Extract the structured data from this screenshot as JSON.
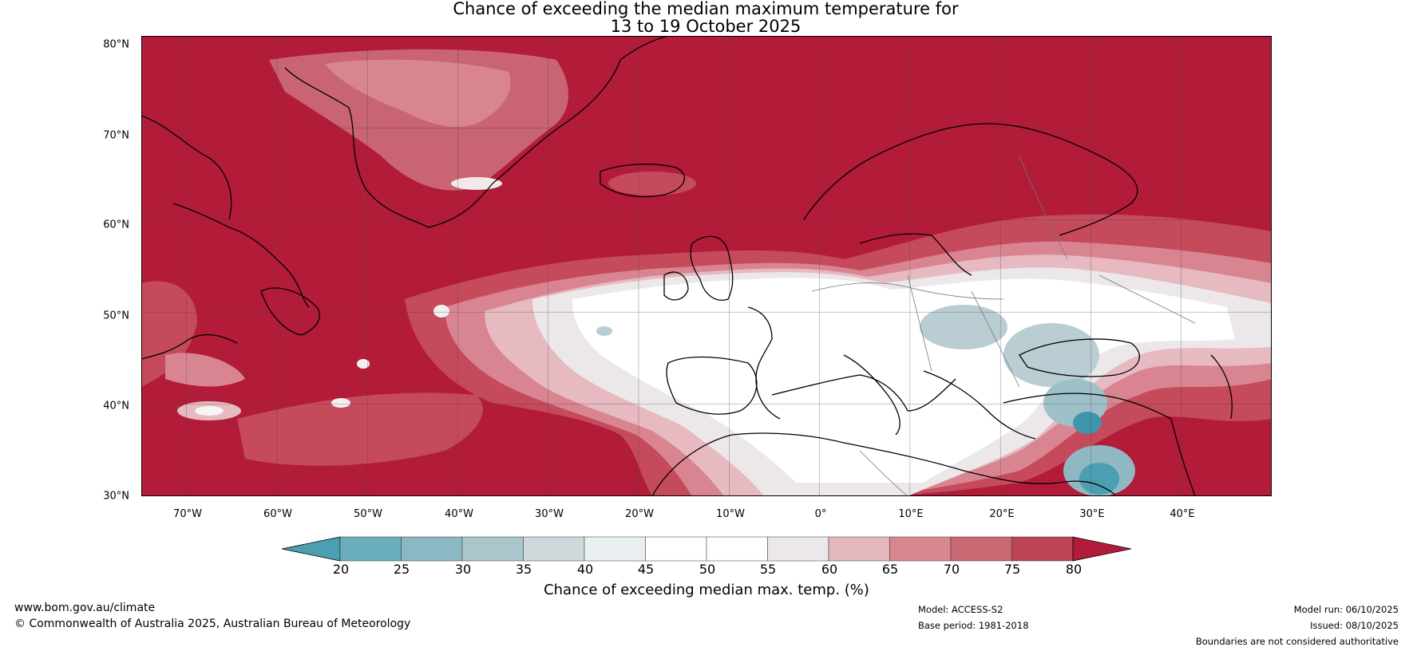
{
  "title": {
    "line1": "Chance of exceeding the median maximum temperature for",
    "line2": "13 to 19 October 2025"
  },
  "map": {
    "lat_range": [
      30,
      80
    ],
    "lon_range": [
      -75,
      50
    ],
    "y_ticks": [
      "80°N",
      "70°N",
      "60°N",
      "50°N",
      "40°N",
      "30°N"
    ],
    "x_ticks": [
      "70°W",
      "60°W",
      "50°W",
      "40°W",
      "30°W",
      "20°W",
      "10°W",
      "0°",
      "10°E",
      "20°E",
      "30°E",
      "40°E"
    ]
  },
  "colorbar": {
    "label": "Chance of exceeding median max. temp. (%)",
    "ticks": [
      "20",
      "25",
      "30",
      "35",
      "40",
      "45",
      "50",
      "55",
      "60",
      "65",
      "70",
      "75",
      "80"
    ],
    "colors": [
      "#4a9fb0",
      "#6aaebb",
      "#8ab8c4",
      "#aac6cc",
      "#cfd8db",
      "#eaf0f2",
      "#ffffff",
      "#ffffff",
      "#ece8e9",
      "#e4b7bd",
      "#d88690",
      "#c86873",
      "#bd4553",
      "#b21c38"
    ]
  },
  "footer": {
    "website": "www.bom.gov.au/climate",
    "copyright": "© Commonwealth of Australia 2025, Australian Bureau of Meteorology",
    "model": "Model: ACCESS-S2",
    "base_period": "Base period: 1981-2018",
    "model_run": "Model run: 06/10/2025",
    "issued": "Issued: 08/10/2025",
    "boundaries": "Boundaries are not considered authoritative"
  },
  "colors": {
    "dark_red": "#b21c38",
    "red": "#c54a5c",
    "pink": "#d98591",
    "light_pink": "#e7b9c0",
    "grey": "#ece8e9",
    "light_blue": "#b9cdd3",
    "teal": "#3f96aa"
  }
}
